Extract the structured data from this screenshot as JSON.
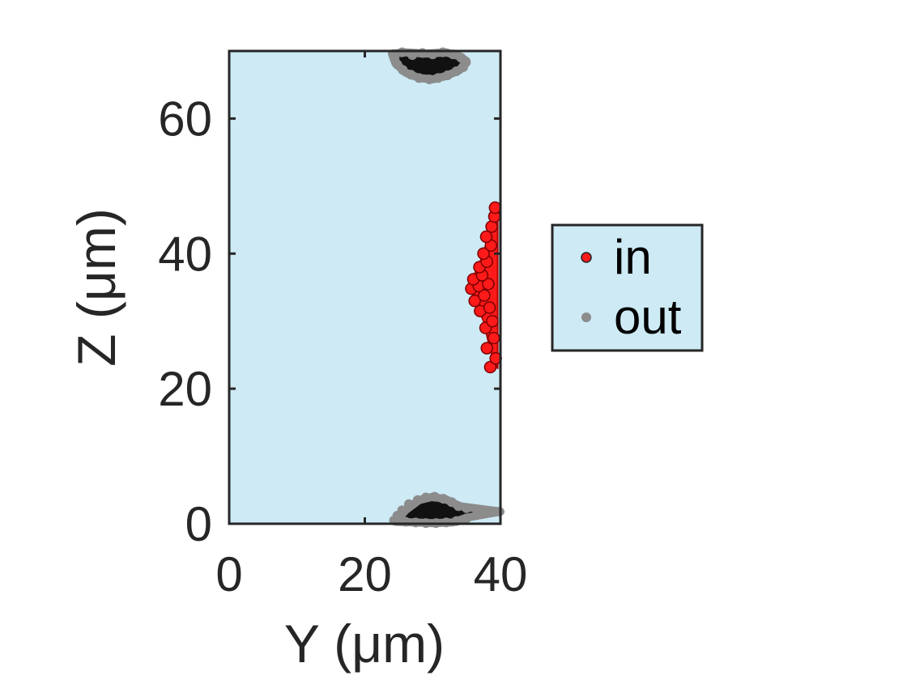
{
  "chart_data": {
    "type": "scatter",
    "xlabel": "Y (μm)",
    "ylabel": "Z (μm)",
    "xlim": [
      0,
      40
    ],
    "ylim": [
      0,
      70
    ],
    "xticks": [
      0,
      20,
      40
    ],
    "yticks": [
      0,
      20,
      40,
      60
    ],
    "grid": false,
    "legend_position": "right",
    "colors": {
      "background": "#cdeaf5",
      "in": "#ff1a1a",
      "out": "#8c8c8c",
      "blob": "#111111",
      "axis": "#262626"
    },
    "series": [
      {
        "name": "in",
        "shape": "wedge",
        "outline": [
          [
            39.2,
            47
          ],
          [
            38.5,
            44
          ],
          [
            37.5,
            40
          ],
          [
            36.2,
            37
          ],
          [
            35.6,
            35
          ],
          [
            36.2,
            33
          ],
          [
            37.5,
            30
          ],
          [
            38.2,
            27
          ],
          [
            39.0,
            24
          ],
          [
            39.6,
            23
          ],
          [
            39.6,
            47
          ]
        ],
        "values": [
          [
            38.5,
            23.2
          ],
          [
            39.3,
            24.5
          ],
          [
            38.0,
            26.0
          ],
          [
            39.0,
            27.5
          ],
          [
            37.8,
            29.0
          ],
          [
            38.8,
            30.0
          ],
          [
            37.0,
            31.5
          ],
          [
            38.4,
            32.0
          ],
          [
            36.2,
            33.0
          ],
          [
            37.6,
            33.8
          ],
          [
            35.7,
            34.8
          ],
          [
            36.8,
            35.2
          ],
          [
            38.2,
            35.5
          ],
          [
            36.0,
            36.2
          ],
          [
            37.3,
            36.8
          ],
          [
            36.9,
            38.0
          ],
          [
            38.0,
            38.8
          ],
          [
            37.5,
            40.0
          ],
          [
            38.6,
            41.2
          ],
          [
            37.9,
            42.5
          ],
          [
            38.7,
            44.0
          ],
          [
            39.1,
            45.5
          ],
          [
            39.2,
            46.8
          ]
        ]
      },
      {
        "name": "out",
        "groups": [
          {
            "label": "top",
            "outline": [
              [
                24,
                69.6
              ],
              [
                26,
                69.8
              ],
              [
                29,
                69.6
              ],
              [
                32,
                69.8
              ],
              [
                34,
                69.2
              ],
              [
                35,
                68.5
              ],
              [
                34,
                67.2
              ],
              [
                32,
                66.3
              ],
              [
                30,
                65.8
              ],
              [
                28,
                66.0
              ],
              [
                26,
                66.8
              ],
              [
                24.5,
                68.2
              ]
            ],
            "values": [
              [
                24.2,
                69.5
              ],
              [
                25.5,
                69.8
              ],
              [
                27.0,
                69.4
              ],
              [
                28.5,
                69.7
              ],
              [
                30.0,
                69.5
              ],
              [
                31.5,
                69.8
              ],
              [
                33.0,
                69.5
              ],
              [
                34.2,
                69.0
              ],
              [
                34.9,
                68.3
              ],
              [
                34.5,
                67.6
              ],
              [
                33.5,
                67.0
              ],
              [
                32.2,
                66.4
              ],
              [
                30.8,
                66.0
              ],
              [
                29.5,
                65.8
              ],
              [
                28.0,
                66.0
              ],
              [
                26.8,
                66.5
              ],
              [
                25.6,
                67.2
              ],
              [
                24.8,
                68.0
              ],
              [
                24.4,
                68.8
              ]
            ]
          },
          {
            "label": "bottom",
            "outline": [
              [
                24.5,
                0.3
              ],
              [
                26,
                2.0
              ],
              [
                28,
                3.5
              ],
              [
                30,
                4.0
              ],
              [
                32,
                3.6
              ],
              [
                34,
                2.6
              ],
              [
                40,
                1.8
              ],
              [
                35,
                0.9
              ],
              [
                33,
                0.2
              ],
              [
                30,
                0.1
              ],
              [
                27,
                0.2
              ]
            ],
            "values": [
              [
                24.3,
                0.5
              ],
              [
                24.8,
                1.2
              ],
              [
                25.5,
                2.0
              ],
              [
                26.5,
                2.9
              ],
              [
                27.8,
                3.5
              ],
              [
                29.0,
                3.9
              ],
              [
                30.3,
                4.0
              ],
              [
                31.6,
                3.7
              ],
              [
                32.8,
                3.2
              ],
              [
                33.8,
                2.6
              ],
              [
                35.0,
                2.3
              ],
              [
                36.5,
                2.1
              ],
              [
                38.0,
                1.9
              ],
              [
                39.8,
                1.8
              ],
              [
                35.0,
                0.8
              ],
              [
                33.5,
                0.4
              ],
              [
                32.0,
                0.2
              ],
              [
                30.5,
                0.1
              ],
              [
                29.0,
                0.1
              ],
              [
                27.5,
                0.2
              ],
              [
                26.0,
                0.3
              ],
              [
                25.0,
                0.4
              ]
            ]
          }
        ]
      }
    ]
  }
}
